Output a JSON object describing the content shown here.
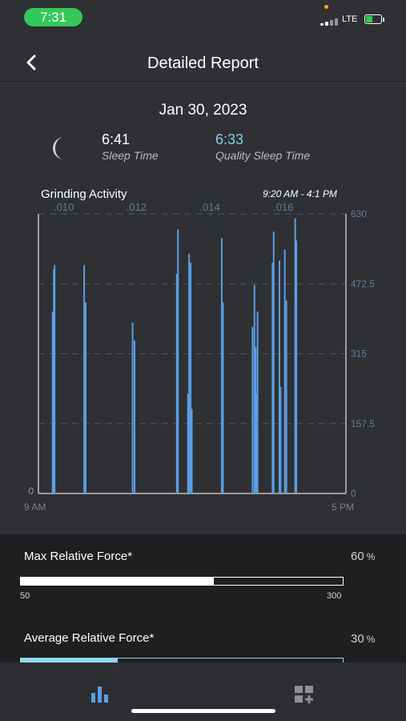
{
  "status_bar": {
    "time": "7:31",
    "network": "LTE"
  },
  "header": {
    "title": "Detailed Report",
    "back_icon": "chevron-left-icon"
  },
  "report": {
    "date": "Jan 30, 2023",
    "sleep_time": {
      "value": "6:41",
      "label": "Sleep Time"
    },
    "quality_sleep_time": {
      "value": "6:33",
      "label": "Quality Sleep Time"
    }
  },
  "chart_data": {
    "type": "bar",
    "title": "Grinding Activity",
    "subtitle": "9:20 AM - 4:1 PM",
    "x_start_label": "9 AM",
    "x_end_label": "5 PM",
    "x_range_hours": [
      9,
      17
    ],
    "top_axis_ticks": [
      {
        "label": ".010",
        "hour": 9.66
      },
      {
        "label": ".012",
        "hour": 11.55
      },
      {
        "label": ".014",
        "hour": 13.46
      },
      {
        "label": ".016",
        "hour": 15.37
      }
    ],
    "left_axis_ticks": [
      "0"
    ],
    "right_axis_ticks": [
      "0",
      "157.5",
      "315",
      "472.5",
      "630"
    ],
    "ylim": [
      0,
      630
    ],
    "grid": "dashed horizontal",
    "bar_color": "#5b9ee4",
    "points": [
      {
        "hour": 9.37,
        "value": 410
      },
      {
        "hour": 9.4,
        "value": 505
      },
      {
        "hour": 9.42,
        "value": 515
      },
      {
        "hour": 10.19,
        "value": 515
      },
      {
        "hour": 10.23,
        "value": 430
      },
      {
        "hour": 11.45,
        "value": 385
      },
      {
        "hour": 11.5,
        "value": 345
      },
      {
        "hour": 12.6,
        "value": 495
      },
      {
        "hour": 12.63,
        "value": 595
      },
      {
        "hour": 12.89,
        "value": 225
      },
      {
        "hour": 12.92,
        "value": 540
      },
      {
        "hour": 12.96,
        "value": 520
      },
      {
        "hour": 12.99,
        "value": 190
      },
      {
        "hour": 13.77,
        "value": 575
      },
      {
        "hour": 13.8,
        "value": 430
      },
      {
        "hour": 14.57,
        "value": 375
      },
      {
        "hour": 14.62,
        "value": 470
      },
      {
        "hour": 14.65,
        "value": 330
      },
      {
        "hour": 14.68,
        "value": 225
      },
      {
        "hour": 14.7,
        "value": 410
      },
      {
        "hour": 15.09,
        "value": 520
      },
      {
        "hour": 15.12,
        "value": 590
      },
      {
        "hour": 15.27,
        "value": 525
      },
      {
        "hour": 15.3,
        "value": 240
      },
      {
        "hour": 15.41,
        "value": 550
      },
      {
        "hour": 15.45,
        "value": 435
      },
      {
        "hour": 15.68,
        "value": 620
      },
      {
        "hour": 15.71,
        "value": 570
      }
    ]
  },
  "metrics": [
    {
      "label": "Max Relative Force*",
      "value": "60",
      "unit": "%",
      "fill_fraction": 0.6,
      "fill_color": "#ffffff",
      "scale_min": "50",
      "scale_max": "300"
    },
    {
      "label": "Average Relative Force*",
      "value": "30",
      "unit": "%",
      "fill_fraction": 0.3,
      "fill_color": "#8fd8e8"
    }
  ],
  "colors": {
    "accent_teal": "#7fd3e6",
    "status_green": "#34c759",
    "tab_active": "#5b9ee4"
  },
  "tab_bar": {
    "active_icon": "bar-chart-icon",
    "inactive_icon": "add-widget-icon"
  }
}
